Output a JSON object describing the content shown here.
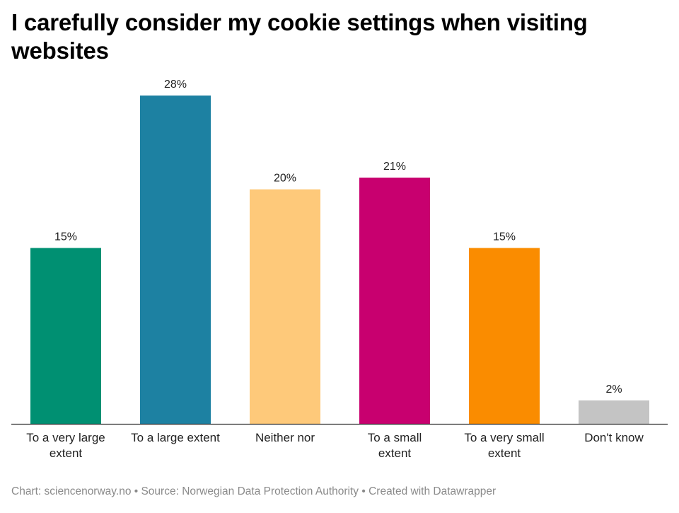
{
  "chart_data": {
    "type": "bar",
    "title": "I carefully consider my cookie settings when visiting websites",
    "categories": [
      [
        "To a very large",
        "extent"
      ],
      [
        "To a large extent"
      ],
      [
        "Neither nor"
      ],
      [
        "To a small",
        "extent"
      ],
      [
        "To a very small",
        "extent"
      ],
      [
        "Don't know"
      ]
    ],
    "values": [
      15,
      28,
      20,
      21,
      15,
      2
    ],
    "value_labels": [
      "15%",
      "28%",
      "20%",
      "21%",
      "15%",
      "2%"
    ],
    "colors": [
      "#009072",
      "#1d81a2",
      "#fec97a",
      "#c8006f",
      "#fa8c00",
      "#c4c4c4"
    ],
    "ylim": [
      0,
      28
    ],
    "xlabel": "",
    "ylabel": "",
    "grid": false
  },
  "footer": {
    "text": "Chart: sciencenorway.no • Source: Norwegian Data Protection Authority • Created with Datawrapper"
  }
}
